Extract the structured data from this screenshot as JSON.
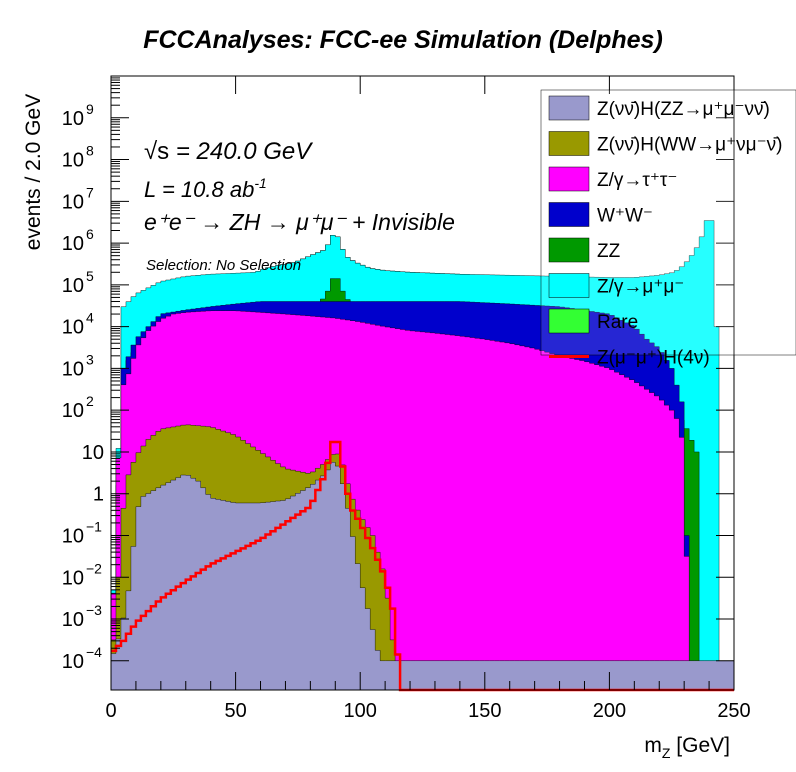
{
  "chart_data": {
    "type": "area",
    "title": "FCCAnalyses: FCC-ee Simulation (Delphes)",
    "xlabel": "m_Z [GeV]",
    "ylabel": "events / 2.0 GeV",
    "xlim": [
      0,
      250
    ],
    "ylim": [
      2e-05,
      10000000000
    ],
    "log_y": true,
    "grid": false,
    "legend_position": "top-right",
    "x_ticks": [
      "0",
      "50",
      "100",
      "150",
      "200",
      "250"
    ],
    "y_ticks": [
      {
        "v": 0.0001,
        "b": "10",
        "e": "−4"
      },
      {
        "v": 0.001,
        "b": "10",
        "e": "−3"
      },
      {
        "v": 0.01,
        "b": "10",
        "e": "−2"
      },
      {
        "v": 0.1,
        "b": "10",
        "e": "−1"
      },
      {
        "v": 1,
        "b": "1",
        "e": ""
      },
      {
        "v": 10,
        "b": "10",
        "e": ""
      },
      {
        "v": 100,
        "b": "10",
        "e": "2"
      },
      {
        "v": 1000,
        "b": "10",
        "e": "3"
      },
      {
        "v": 10000,
        "b": "10",
        "e": "4"
      },
      {
        "v": 100000,
        "b": "10",
        "e": "5"
      },
      {
        "v": 1000000,
        "b": "10",
        "e": "6"
      },
      {
        "v": 10000000,
        "b": "10",
        "e": "7"
      },
      {
        "v": 100000000,
        "b": "10",
        "e": "8"
      },
      {
        "v": 1000000000,
        "b": "10",
        "e": "9"
      }
    ],
    "annotations": {
      "sqrt_s_symbol": "√s",
      "sqrt_s_value": " = 240.0 GeV",
      "lumi": "L = 10.8 ab",
      "lumi_sup": "-1",
      "process": "e⁺e⁻ → ZH → μ⁺μ⁻ + Invisible",
      "selection": "Selection: No Selection"
    },
    "series": [
      {
        "name": "Rare",
        "color": "#33ff33",
        "points": [
          [
            0,
            0.0001
          ],
          [
            5,
            10000
          ],
          [
            10,
            30000
          ],
          [
            20,
            80000
          ],
          [
            30,
            100000
          ],
          [
            40,
            110000
          ],
          [
            50,
            120000
          ],
          [
            58,
            150000
          ],
          [
            62,
            250000
          ],
          [
            68,
            300000
          ],
          [
            74,
            350000
          ],
          [
            80,
            500000
          ],
          [
            86,
            700000
          ],
          [
            90,
            2000000
          ],
          [
            94,
            500000
          ],
          [
            98,
            350000
          ],
          [
            104,
            250000
          ],
          [
            110,
            220000
          ],
          [
            120,
            200000
          ],
          [
            140,
            180000
          ],
          [
            160,
            160000
          ],
          [
            180,
            130000
          ],
          [
            200,
            100000
          ],
          [
            215,
            70000
          ],
          [
            225,
            50000
          ],
          [
            230,
            20000
          ],
          [
            233,
            1000
          ],
          [
            236,
            100
          ],
          [
            238,
            0.0001
          ]
        ]
      },
      {
        "name": "Z/γ→μ⁺μ⁻",
        "color": "#00ffff",
        "points": [
          [
            0,
            0.0001
          ],
          [
            5,
            30000
          ],
          [
            10,
            60000
          ],
          [
            20,
            120000
          ],
          [
            30,
            160000
          ],
          [
            40,
            180000
          ],
          [
            50,
            190000
          ],
          [
            58,
            200000
          ],
          [
            62,
            250000
          ],
          [
            68,
            300000
          ],
          [
            74,
            350000
          ],
          [
            80,
            500000
          ],
          [
            86,
            700000
          ],
          [
            90,
            2000000
          ],
          [
            94,
            500000
          ],
          [
            98,
            350000
          ],
          [
            104,
            250000
          ],
          [
            110,
            220000
          ],
          [
            120,
            200000
          ],
          [
            140,
            180000
          ],
          [
            160,
            170000
          ],
          [
            180,
            160000
          ],
          [
            200,
            150000
          ],
          [
            210,
            150000
          ],
          [
            220,
            170000
          ],
          [
            226,
            200000
          ],
          [
            230,
            300000
          ],
          [
            234,
            600000
          ],
          [
            236,
            1000000
          ],
          [
            238,
            2000000
          ],
          [
            240,
            6000000
          ],
          [
            242,
            2000000
          ],
          [
            243,
            10000
          ],
          [
            244,
            0.0001
          ]
        ]
      },
      {
        "name": "ZZ",
        "color": "#009900",
        "points": [
          [
            0,
            0.0001
          ],
          [
            5,
            1000
          ],
          [
            10,
            3000
          ],
          [
            15,
            8000
          ],
          [
            20,
            15000
          ],
          [
            30,
            20000
          ],
          [
            40,
            22000
          ],
          [
            50,
            24000
          ],
          [
            60,
            25000
          ],
          [
            70,
            25000
          ],
          [
            80,
            30000
          ],
          [
            86,
            50000
          ],
          [
            88,
            100000
          ],
          [
            90,
            200000
          ],
          [
            92,
            100000
          ],
          [
            94,
            50000
          ],
          [
            100,
            25000
          ],
          [
            110,
            15000
          ],
          [
            120,
            12000
          ],
          [
            140,
            9000
          ],
          [
            160,
            6000
          ],
          [
            180,
            3000
          ],
          [
            200,
            1000
          ],
          [
            210,
            500
          ],
          [
            220,
            200
          ],
          [
            230,
            50
          ],
          [
            235,
            10
          ],
          [
            236,
            0.0001
          ]
        ]
      },
      {
        "name": "W⁺W⁻",
        "color": "#0000cc",
        "points": [
          [
            0,
            0.0001
          ],
          [
            5,
            1000
          ],
          [
            10,
            5000
          ],
          [
            15,
            10000
          ],
          [
            20,
            20000
          ],
          [
            30,
            25000
          ],
          [
            40,
            30000
          ],
          [
            50,
            35000
          ],
          [
            60,
            40000
          ],
          [
            70,
            40000
          ],
          [
            80,
            40000
          ],
          [
            90,
            40000
          ],
          [
            100,
            40000
          ],
          [
            120,
            40000
          ],
          [
            140,
            40000
          ],
          [
            160,
            35000
          ],
          [
            180,
            30000
          ],
          [
            200,
            20000
          ],
          [
            210,
            10000
          ],
          [
            215,
            5000
          ],
          [
            220,
            3000
          ],
          [
            225,
            1000
          ],
          [
            230,
            100
          ],
          [
            232,
            0.0001
          ]
        ]
      },
      {
        "name": "Z/γ→τ⁺τ⁻",
        "color": "#ff00ff",
        "points": [
          [
            0,
            0.0001
          ],
          [
            4,
            300
          ],
          [
            8,
            1000
          ],
          [
            10,
            3000
          ],
          [
            15,
            8000
          ],
          [
            20,
            15000
          ],
          [
            25,
            20000
          ],
          [
            30,
            22000
          ],
          [
            40,
            24000
          ],
          [
            50,
            24000
          ],
          [
            60,
            22000
          ],
          [
            70,
            20000
          ],
          [
            80,
            18000
          ],
          [
            90,
            16000
          ],
          [
            100,
            13000
          ],
          [
            110,
            10000
          ],
          [
            120,
            8000
          ],
          [
            130,
            7000
          ],
          [
            140,
            6000
          ],
          [
            150,
            5000
          ],
          [
            160,
            4000
          ],
          [
            170,
            3000
          ],
          [
            180,
            2000
          ],
          [
            190,
            1500
          ],
          [
            200,
            1000
          ],
          [
            210,
            500
          ],
          [
            220,
            200
          ],
          [
            225,
            100
          ],
          [
            228,
            50
          ],
          [
            230,
            10
          ],
          [
            232,
            0.0001
          ]
        ]
      },
      {
        "name": "Z(νν̄)H(WW→μ⁺νμ⁻ν̄)",
        "color": "#999900",
        "points": [
          [
            0,
            0.0001
          ],
          [
            2,
            0.001
          ],
          [
            4,
            0.1
          ],
          [
            6,
            2
          ],
          [
            10,
            8
          ],
          [
            15,
            20
          ],
          [
            20,
            35
          ],
          [
            30,
            45
          ],
          [
            40,
            40
          ],
          [
            50,
            25
          ],
          [
            60,
            10
          ],
          [
            70,
            4
          ],
          [
            80,
            3
          ],
          [
            85,
            5
          ],
          [
            90,
            10
          ],
          [
            92,
            8
          ],
          [
            94,
            3
          ],
          [
            96,
            1
          ],
          [
            100,
            0.3
          ],
          [
            105,
            0.1
          ],
          [
            110,
            0.01
          ],
          [
            112,
            0.001
          ],
          [
            114,
            0.0001
          ],
          [
            115,
            0.0001
          ]
        ]
      },
      {
        "name": "Z(νν̄)H(ZZ→μ⁺μ⁻νν̄)",
        "color": "#9999cc",
        "points": [
          [
            0,
            0.0001
          ],
          [
            4,
            0.0005
          ],
          [
            8,
            0.01
          ],
          [
            10,
            0.3
          ],
          [
            12,
            0.8
          ],
          [
            20,
            1.5
          ],
          [
            30,
            3
          ],
          [
            35,
            2
          ],
          [
            40,
            0.8
          ],
          [
            50,
            0.6
          ],
          [
            60,
            0.6
          ],
          [
            70,
            0.7
          ],
          [
            80,
            1.5
          ],
          [
            86,
            3
          ],
          [
            90,
            7
          ],
          [
            92,
            3
          ],
          [
            94,
            1
          ],
          [
            96,
            0.2
          ],
          [
            100,
            0.01
          ],
          [
            104,
            0.001
          ],
          [
            108,
            0.0001
          ],
          [
            110,
            0.0001
          ]
        ]
      }
    ],
    "signal": {
      "name": "Z(μ⁻μ⁺)H(4ν)",
      "color": "#ff0000",
      "points": [
        [
          0,
          0.00015
        ],
        [
          5,
          0.0003
        ],
        [
          10,
          0.0008
        ],
        [
          20,
          0.003
        ],
        [
          30,
          0.008
        ],
        [
          40,
          0.02
        ],
        [
          50,
          0.04
        ],
        [
          60,
          0.08
        ],
        [
          70,
          0.2
        ],
        [
          80,
          0.5
        ],
        [
          86,
          3
        ],
        [
          88,
          10
        ],
        [
          90,
          30
        ],
        [
          92,
          10
        ],
        [
          94,
          2
        ],
        [
          96,
          0.5
        ],
        [
          100,
          0.2
        ],
        [
          105,
          0.05
        ],
        [
          110,
          0.01
        ],
        [
          114,
          0.001
        ],
        [
          116,
          2e-05
        ]
      ]
    }
  }
}
